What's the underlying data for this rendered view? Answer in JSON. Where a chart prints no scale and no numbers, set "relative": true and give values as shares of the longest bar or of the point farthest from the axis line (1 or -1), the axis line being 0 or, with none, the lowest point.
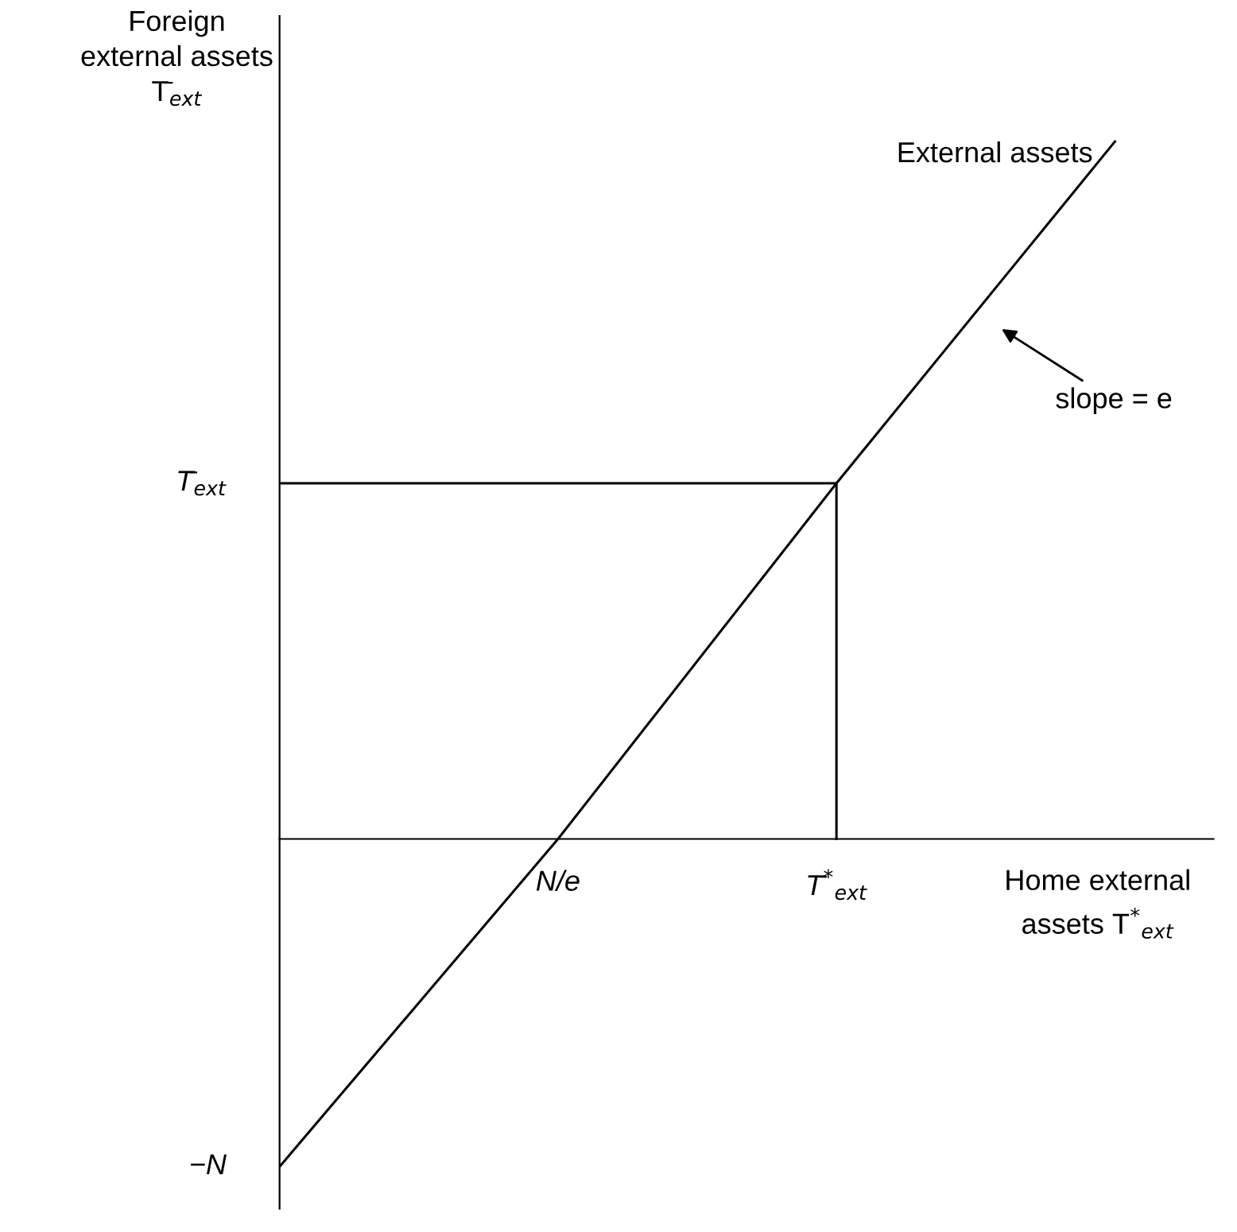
{
  "chart_data": {
    "type": "line",
    "relative": true,
    "xlabel": "Home external\nassets T$^{*}$$_{ext}$",
    "ylabel": "Foreign\nexternal assets\nT̄$_{ext}$",
    "categories": [
      null,
      "N/e",
      "T̄$^{*}$$_{ext}$",
      null
    ],
    "series": [
      {
        "color": "#000000",
        "values": [
          -0.47,
          0,
          0.51,
          1
        ]
      },
      {
        "type": "step",
        "color": "#000000",
        "values": [
          0.51,
          0.51,
          0,
          null
        ]
      }
    ],
    "annotations": [
      "−N",
      "T̄$_{ext}$",
      "External assets",
      "slope = e"
    ]
  }
}
